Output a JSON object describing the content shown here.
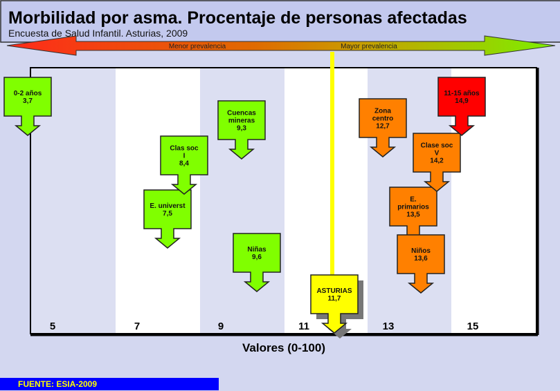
{
  "chart_data": {
    "type": "diagram-arrows",
    "title": "Morbilidad por asma. Procentaje de personas afectadas",
    "subtitle": "Encuesta de Salud Infantil. Asturias, 2009",
    "xlabel": "Valores (0-100)",
    "x_ticks": [
      "5",
      "7",
      "9",
      "11",
      "13",
      "15"
    ],
    "scale_arrow": {
      "left_label": "Menor prevalencia",
      "right_label": "Mayor prevalencia"
    },
    "reference": {
      "label": "ASTURIAS",
      "value": 11.7,
      "value_text": "11,7",
      "color": "#ffff00"
    },
    "items": [
      {
        "lines": [
          "0-2 años"
        ],
        "value": 3.7,
        "value_text": "3,7",
        "color": "#80ff00"
      },
      {
        "lines": [
          "E. universt"
        ],
        "value": 7.5,
        "value_text": "7,5",
        "color": "#80ff00"
      },
      {
        "lines": [
          "Clas soc",
          "I"
        ],
        "value": 8.4,
        "value_text": "8,4",
        "color": "#80ff00"
      },
      {
        "lines": [
          "Cuencas",
          "mineras"
        ],
        "value": 9.3,
        "value_text": "9,3",
        "color": "#80ff00"
      },
      {
        "lines": [
          "Niñas"
        ],
        "value": 9.6,
        "value_text": "9,6",
        "color": "#80ff00"
      },
      {
        "lines": [
          "Zona",
          "centro"
        ],
        "value": 12.7,
        "value_text": "12,7",
        "color": "#ff8000"
      },
      {
        "lines": [
          "E.",
          "primarios"
        ],
        "value": 13.5,
        "value_text": "13,5",
        "color": "#ff8000"
      },
      {
        "lines": [
          "Niños"
        ],
        "value": 13.6,
        "value_text": "13,6",
        "color": "#ff8000"
      },
      {
        "lines": [
          "Clase soc",
          "V"
        ],
        "value": 14.2,
        "value_text": "14,2",
        "color": "#ff8000"
      },
      {
        "lines": [
          "11-15 años"
        ],
        "value": 14.9,
        "value_text": "14,9",
        "color": "#ff0000"
      }
    ]
  },
  "footer": {
    "source": "FUENTE: ESIA-2009",
    "color": "#0000ff",
    "text_color": "#ffff00"
  }
}
